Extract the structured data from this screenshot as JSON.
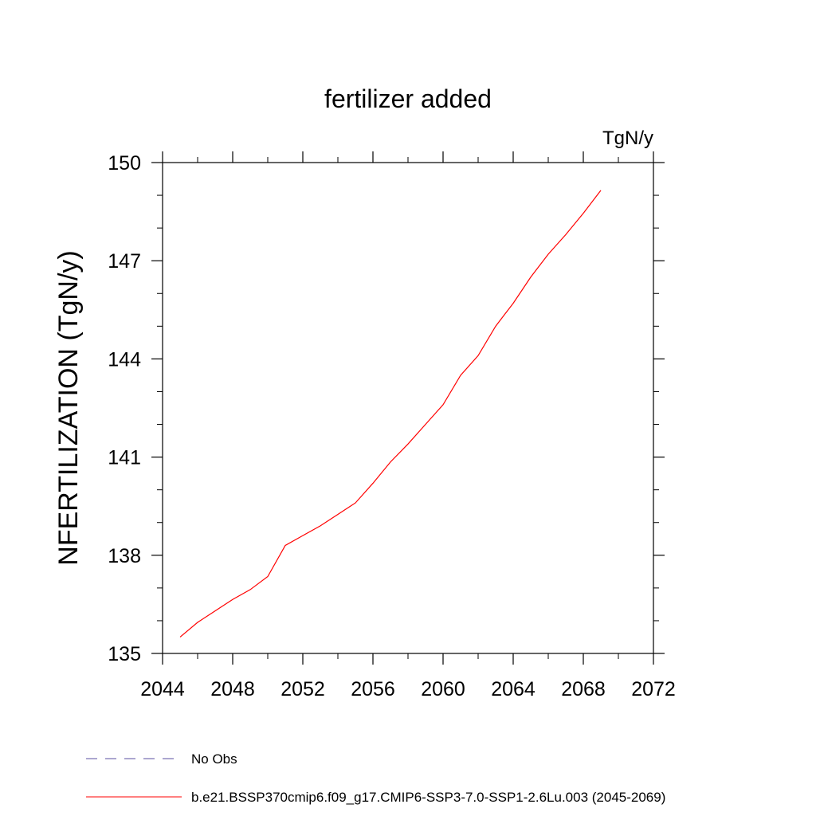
{
  "chart_data": {
    "type": "line",
    "title": "fertilizer added",
    "units_label": "TgN/y",
    "ylabel": "NFERTILIZATION  (TgN/y)",
    "xlim": [
      2044,
      2072
    ],
    "ylim": [
      135,
      150
    ],
    "x_ticks": [
      2044,
      2048,
      2052,
      2056,
      2060,
      2064,
      2068,
      2072
    ],
    "y_ticks": [
      135,
      138,
      141,
      144,
      147,
      150
    ],
    "x_minor_step": 2,
    "y_minor_step": 1,
    "grid": false,
    "legend_position": "bottom",
    "series": [
      {
        "name": "No Obs",
        "color": "#5a4fa0",
        "dash": "dashed",
        "x": [],
        "y": []
      },
      {
        "name": "b.e21.BSSP370cmip6.f09_g17.CMIP6-SSP3-7.0-SSP1-2.6Lu.003 (2045-2069)",
        "color": "#ff0000",
        "dash": "solid",
        "x": [
          2045,
          2046,
          2047,
          2048,
          2049,
          2050,
          2051,
          2052,
          2053,
          2054,
          2055,
          2056,
          2057,
          2058,
          2059,
          2060,
          2061,
          2062,
          2063,
          2064,
          2065,
          2066,
          2067,
          2068,
          2069
        ],
        "y": [
          135.5,
          135.95,
          136.3,
          136.65,
          136.95,
          137.35,
          138.3,
          138.6,
          138.9,
          139.25,
          139.6,
          140.2,
          140.85,
          141.4,
          142.0,
          142.6,
          143.5,
          144.1,
          145.0,
          145.7,
          146.5,
          147.2,
          147.8,
          148.45,
          149.15
        ]
      }
    ]
  }
}
